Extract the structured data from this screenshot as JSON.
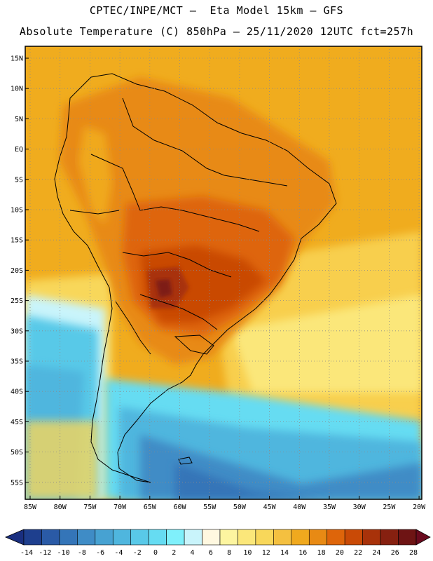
{
  "header": {
    "line1": "CPTEC/INPE/MCT –  Eta Model 15km – GFS",
    "line2": "Absolute Temperature (C) 850hPa – 25/11/2020 12UTC fct=257h"
  },
  "axes": {
    "lat_labels": [
      "15N",
      "10N",
      "5N",
      "EQ",
      "5S",
      "10S",
      "15S",
      "20S",
      "25S",
      "30S",
      "35S",
      "40S",
      "45S",
      "50S",
      "55S"
    ],
    "lon_labels": [
      "85W",
      "80W",
      "75W",
      "70W",
      "65W",
      "60W",
      "55W",
      "50W",
      "45W",
      "40W",
      "35W",
      "30W",
      "25W",
      "20W"
    ]
  },
  "colorbar": {
    "labels": [
      "-14",
      "-12",
      "-10",
      "-8",
      "-6",
      "-4",
      "-2",
      "0",
      "2",
      "4",
      "6",
      "8",
      "10",
      "12",
      "14",
      "16",
      "18",
      "20",
      "22",
      "24",
      "26",
      "28"
    ],
    "colors": [
      "#1e3f8e",
      "#2a5aa6",
      "#3475b8",
      "#3f8cc6",
      "#47a2d2",
      "#4fb6de",
      "#59c9e8",
      "#66dcf2",
      "#7ff0fb",
      "#c9f4fb",
      "#fff8e0",
      "#fdf5a0",
      "#fbe77a",
      "#f8d75a",
      "#f4c040",
      "#f0a91e",
      "#e88a14",
      "#de650a",
      "#c94a06",
      "#a8320a",
      "#862010",
      "#6e1414"
    ],
    "under_color": "#1a2f80",
    "over_color": "#6a0a1e"
  },
  "map_colors": {
    "ocean_north": "#f0ac1e",
    "land_hot": "#c24a0c",
    "hot_core": "#7e1a14"
  }
}
